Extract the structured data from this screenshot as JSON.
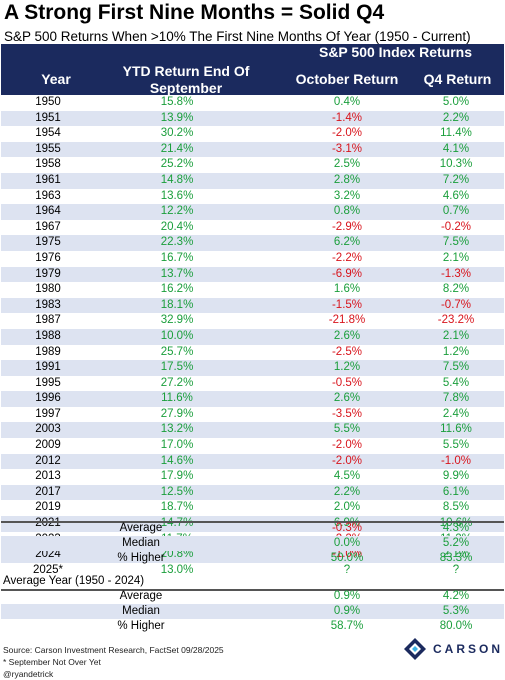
{
  "title": "A Strong First Nine Months = Solid Q4",
  "subtitle": "S&P 500 Returns When >10% The First Nine Months Of Year (1950 - Current)",
  "header": {
    "group": "S&P 500 Index Returns",
    "year": "Year",
    "ytd": "YTD Return End Of September",
    "oct": "October Return",
    "q4": "Q4 Return"
  },
  "rows": [
    {
      "year": "1950",
      "ytd": "15.8%",
      "oct": "0.4%",
      "q4": "5.0%"
    },
    {
      "year": "1951",
      "ytd": "13.9%",
      "oct": "-1.4%",
      "q4": "2.2%"
    },
    {
      "year": "1954",
      "ytd": "30.2%",
      "oct": "-2.0%",
      "q4": "11.4%"
    },
    {
      "year": "1955",
      "ytd": "21.4%",
      "oct": "-3.1%",
      "q4": "4.1%"
    },
    {
      "year": "1958",
      "ytd": "25.2%",
      "oct": "2.5%",
      "q4": "10.3%"
    },
    {
      "year": "1961",
      "ytd": "14.8%",
      "oct": "2.8%",
      "q4": "7.2%"
    },
    {
      "year": "1963",
      "ytd": "13.6%",
      "oct": "3.2%",
      "q4": "4.6%"
    },
    {
      "year": "1964",
      "ytd": "12.2%",
      "oct": "0.8%",
      "q4": "0.7%"
    },
    {
      "year": "1967",
      "ytd": "20.4%",
      "oct": "-2.9%",
      "q4": "-0.2%"
    },
    {
      "year": "1975",
      "ytd": "22.3%",
      "oct": "6.2%",
      "q4": "7.5%"
    },
    {
      "year": "1976",
      "ytd": "16.7%",
      "oct": "-2.2%",
      "q4": "2.1%"
    },
    {
      "year": "1979",
      "ytd": "13.7%",
      "oct": "-6.9%",
      "q4": "-1.3%"
    },
    {
      "year": "1980",
      "ytd": "16.2%",
      "oct": "1.6%",
      "q4": "8.2%"
    },
    {
      "year": "1983",
      "ytd": "18.1%",
      "oct": "-1.5%",
      "q4": "-0.7%"
    },
    {
      "year": "1987",
      "ytd": "32.9%",
      "oct": "-21.8%",
      "q4": "-23.2%"
    },
    {
      "year": "1988",
      "ytd": "10.0%",
      "oct": "2.6%",
      "q4": "2.1%"
    },
    {
      "year": "1989",
      "ytd": "25.7%",
      "oct": "-2.5%",
      "q4": "1.2%"
    },
    {
      "year": "1991",
      "ytd": "17.5%",
      "oct": "1.2%",
      "q4": "7.5%"
    },
    {
      "year": "1995",
      "ytd": "27.2%",
      "oct": "-0.5%",
      "q4": "5.4%"
    },
    {
      "year": "1996",
      "ytd": "11.6%",
      "oct": "2.6%",
      "q4": "7.8%"
    },
    {
      "year": "1997",
      "ytd": "27.9%",
      "oct": "-3.5%",
      "q4": "2.4%"
    },
    {
      "year": "2003",
      "ytd": "13.2%",
      "oct": "5.5%",
      "q4": "11.6%"
    },
    {
      "year": "2009",
      "ytd": "17.0%",
      "oct": "-2.0%",
      "q4": "5.5%"
    },
    {
      "year": "2012",
      "ytd": "14.6%",
      "oct": "-2.0%",
      "q4": "-1.0%"
    },
    {
      "year": "2013",
      "ytd": "17.9%",
      "oct": "4.5%",
      "q4": "9.9%"
    },
    {
      "year": "2017",
      "ytd": "12.5%",
      "oct": "2.2%",
      "q4": "6.1%"
    },
    {
      "year": "2019",
      "ytd": "18.7%",
      "oct": "2.0%",
      "q4": "8.5%"
    },
    {
      "year": "2021",
      "ytd": "14.7%",
      "oct": "6.9%",
      "q4": "10.6%"
    },
    {
      "year": "2023",
      "ytd": "11.7%",
      "oct": "-2.2%",
      "q4": "11.2%"
    },
    {
      "year": "2024",
      "ytd": "20.8%",
      "oct": "-1.0%",
      "q4": "2.1%"
    },
    {
      "year": "2025*",
      "ytd": "13.0%",
      "oct": "?",
      "q4": "?"
    }
  ],
  "summary": [
    {
      "label": "Average",
      "oct": "-0.3%",
      "q4": "4.3%"
    },
    {
      "label": "Median",
      "oct": "0.0%",
      "q4": "5.2%"
    },
    {
      "label": "% Higher",
      "oct": "50.0%",
      "q4": "83.3%"
    }
  ],
  "avg_year_title": "Average Year (1950 - 2024)",
  "avg_year": [
    {
      "label": "Average",
      "oct": "0.9%",
      "q4": "4.2%"
    },
    {
      "label": "Median",
      "oct": "0.9%",
      "q4": "5.3%"
    },
    {
      "label": "% Higher",
      "oct": "58.7%",
      "q4": "80.0%"
    }
  ],
  "footer": {
    "source": "Source: Carson Investment Research, FactSet 09/28/2025",
    "note": "* September Not Over Yet",
    "handle": "@ryandetrick"
  },
  "logo": {
    "text": "CARSON",
    "icon": "carson-logo-icon"
  },
  "colors": {
    "header_bg": "#1b2a5e",
    "stripe": "#dde3f1",
    "positive": "#1a9e3b",
    "negative": "#d8141c"
  }
}
